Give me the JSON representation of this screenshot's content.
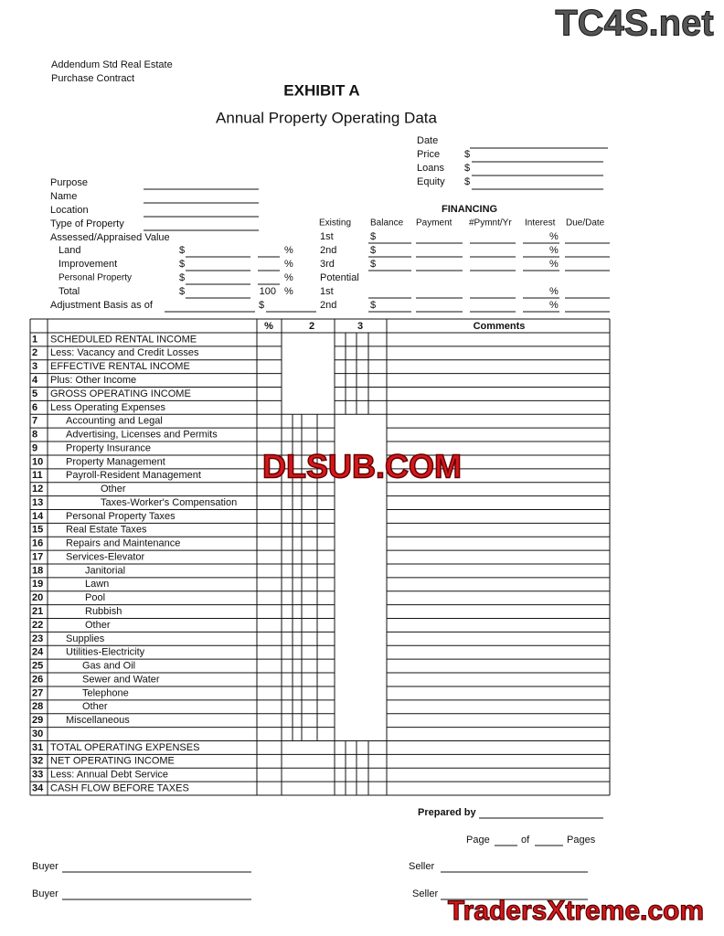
{
  "watermarks": {
    "top": "TC4S.net",
    "center": "DLSUB.COM",
    "bottom": "TradersXtreme.com"
  },
  "header": {
    "addendum": [
      "Addendum Std Real Estate",
      "Purchase Contract"
    ],
    "title": "EXHIBIT A",
    "subtitle": "Annual Property Operating Data"
  },
  "summary": [
    {
      "label": "Date"
    },
    {
      "label": "Price",
      "prefix": "$"
    },
    {
      "label": "Loans",
      "prefix": "$"
    },
    {
      "label": "Equity",
      "prefix": "$"
    }
  ],
  "property": {
    "fields": [
      "Purpose",
      "Name",
      "Location",
      "Type of Property",
      "Assessed/Appraised Value"
    ],
    "values": [
      {
        "label": "Land",
        "currency": "$",
        "unit": "%"
      },
      {
        "label": "Improvement",
        "currency": "$",
        "unit": "%"
      },
      {
        "label": "Personal Property",
        "currency": "$",
        "unit": "%"
      },
      {
        "label": "Total",
        "currency": "$",
        "percent": "100",
        "unit": "%"
      }
    ],
    "adjustment": {
      "label": "Adjustment Basis as of",
      "currency": "$"
    }
  },
  "financing": {
    "title": "FINANCING",
    "columns": [
      "Existing",
      "Balance",
      "Payment",
      "#Pymnt/Yr",
      "Interest",
      "Due/Date"
    ],
    "rows": [
      {
        "label": "1st",
        "balance": "$",
        "interest": "%"
      },
      {
        "label": "2nd",
        "balance": "$",
        "interest": "%"
      },
      {
        "label": "3rd",
        "balance": "$",
        "interest": "%"
      },
      {
        "label": "Potential"
      },
      {
        "label": "1st",
        "interest": "%"
      },
      {
        "label": "2nd",
        "balance": "$",
        "interest": "%"
      }
    ]
  },
  "table": {
    "columns": {
      "percent": "%",
      "col2": "2",
      "col3": "3",
      "comments": "Comments"
    },
    "rows": [
      {
        "no": 1,
        "label": "SCHEDULED RENTAL INCOME"
      },
      {
        "no": 2,
        "label": "Less: Vacancy and Credit Losses"
      },
      {
        "no": 3,
        "label": "EFFECTIVE RENTAL INCOME"
      },
      {
        "no": 4,
        "label": "Plus: Other Income"
      },
      {
        "no": 5,
        "label": "GROSS OPERATING INCOME"
      },
      {
        "no": 6,
        "label": "Less Operating Expenses"
      },
      {
        "no": 7,
        "label": "Accounting and Legal"
      },
      {
        "no": 8,
        "label": "Advertising, Licenses and Permits"
      },
      {
        "no": 9,
        "label": "Property Insurance"
      },
      {
        "no": 10,
        "label": "Property Management"
      },
      {
        "no": 11,
        "label": "Payroll-Resident Management"
      },
      {
        "no": 12,
        "label": "Other"
      },
      {
        "no": 13,
        "label": "Taxes-Worker's Compensation"
      },
      {
        "no": 14,
        "label": "Personal Property Taxes"
      },
      {
        "no": 15,
        "label": "Real Estate Taxes"
      },
      {
        "no": 16,
        "label": "Repairs and Maintenance"
      },
      {
        "no": 17,
        "label": "Services-Elevator"
      },
      {
        "no": 18,
        "label": "Janitorial"
      },
      {
        "no": 19,
        "label": "Lawn"
      },
      {
        "no": 20,
        "label": "Pool"
      },
      {
        "no": 21,
        "label": "Rubbish"
      },
      {
        "no": 22,
        "label": "Other"
      },
      {
        "no": 23,
        "label": "Supplies"
      },
      {
        "no": 24,
        "label": "Utilities-Electricity"
      },
      {
        "no": 25,
        "label": "Gas and Oil"
      },
      {
        "no": 26,
        "label": "Sewer and Water"
      },
      {
        "no": 27,
        "label": "Telephone"
      },
      {
        "no": 28,
        "label": "Other"
      },
      {
        "no": 29,
        "label": "Miscellaneous"
      },
      {
        "no": 30
      },
      {
        "no": 31,
        "label": "TOTAL OPERATING EXPENSES"
      },
      {
        "no": 32,
        "label": "NET OPERATING INCOME"
      },
      {
        "no": 33,
        "label": "Less: Annual Debt Service"
      },
      {
        "no": 34,
        "label": "CASH FLOW BEFORE TAXES"
      }
    ]
  },
  "footer": {
    "prepared_by": "Prepared by",
    "page": "Page",
    "of": "of",
    "pages": "Pages",
    "signatures": [
      {
        "buyer": "Buyer",
        "seller": "Seller"
      },
      {
        "buyer": "Buyer",
        "seller": "Seller"
      }
    ]
  }
}
